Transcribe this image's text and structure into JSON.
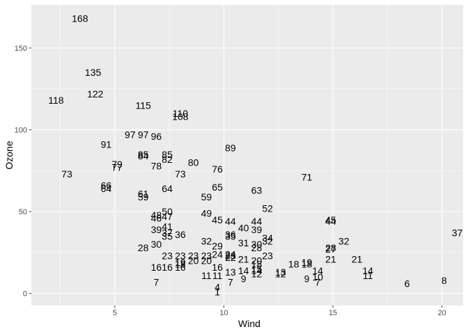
{
  "chart_data": {
    "type": "scatter",
    "title": "",
    "xlabel": "Wind",
    "ylabel": "Ozone",
    "xlim": [
      1.17,
      20.97
    ],
    "ylim": [
      -7.35,
      176.35
    ],
    "x_ticks": [
      5,
      10,
      15,
      20
    ],
    "y_ticks": [
      0,
      50,
      100,
      150
    ],
    "x_minor_ticks": [
      2.5,
      7.5,
      12.5,
      17.5
    ],
    "y_minor_ticks": [
      25,
      75,
      125
    ],
    "grid": true,
    "panel_color": "#ebebeb",
    "grid_color": "#ffffff",
    "point_display": "text labels showing the Ozone value",
    "points": [
      {
        "x": 3.4,
        "y": 168,
        "label": "168"
      },
      {
        "x": 4.0,
        "y": 135,
        "label": "135"
      },
      {
        "x": 2.3,
        "y": 118,
        "label": "118"
      },
      {
        "x": 4.1,
        "y": 122,
        "label": "122"
      },
      {
        "x": 6.3,
        "y": 115,
        "label": "115"
      },
      {
        "x": 8.0,
        "y": 110,
        "label": "110"
      },
      {
        "x": 8.0,
        "y": 108,
        "label": "108"
      },
      {
        "x": 5.7,
        "y": 97,
        "label": "97"
      },
      {
        "x": 6.3,
        "y": 97,
        "label": "97"
      },
      {
        "x": 6.9,
        "y": 96,
        "label": "96"
      },
      {
        "x": 4.6,
        "y": 91,
        "label": "91"
      },
      {
        "x": 10.3,
        "y": 89,
        "label": "89"
      },
      {
        "x": 6.3,
        "y": 85,
        "label": "85"
      },
      {
        "x": 7.4,
        "y": 85,
        "label": "85"
      },
      {
        "x": 6.3,
        "y": 84,
        "label": "84"
      },
      {
        "x": 7.4,
        "y": 82,
        "label": "82"
      },
      {
        "x": 8.6,
        "y": 80,
        "label": "80"
      },
      {
        "x": 5.1,
        "y": 79,
        "label": "79"
      },
      {
        "x": 6.9,
        "y": 78,
        "label": "78"
      },
      {
        "x": 5.1,
        "y": 77,
        "label": "77"
      },
      {
        "x": 9.7,
        "y": 76,
        "label": "76"
      },
      {
        "x": 2.8,
        "y": 73,
        "label": "73"
      },
      {
        "x": 8.0,
        "y": 73,
        "label": "73"
      },
      {
        "x": 13.8,
        "y": 71,
        "label": "71"
      },
      {
        "x": 4.6,
        "y": 66,
        "label": "66"
      },
      {
        "x": 9.7,
        "y": 65,
        "label": "65"
      },
      {
        "x": 4.6,
        "y": 64,
        "label": "64"
      },
      {
        "x": 7.4,
        "y": 64,
        "label": "64"
      },
      {
        "x": 11.5,
        "y": 63,
        "label": "63"
      },
      {
        "x": 6.3,
        "y": 61,
        "label": "61"
      },
      {
        "x": 6.3,
        "y": 59,
        "label": "59"
      },
      {
        "x": 9.2,
        "y": 59,
        "label": "59"
      },
      {
        "x": 12.0,
        "y": 52,
        "label": "52"
      },
      {
        "x": 7.4,
        "y": 50,
        "label": "50"
      },
      {
        "x": 6.9,
        "y": 48,
        "label": "48"
      },
      {
        "x": 9.2,
        "y": 49,
        "label": "49"
      },
      {
        "x": 7.4,
        "y": 47,
        "label": "47"
      },
      {
        "x": 6.9,
        "y": 46,
        "label": "46"
      },
      {
        "x": 9.7,
        "y": 45,
        "label": "45"
      },
      {
        "x": 10.3,
        "y": 44,
        "label": "44"
      },
      {
        "x": 11.5,
        "y": 44,
        "label": "44"
      },
      {
        "x": 14.9,
        "y": 45,
        "label": "45"
      },
      {
        "x": 14.9,
        "y": 44,
        "label": "44"
      },
      {
        "x": 10.9,
        "y": 40,
        "label": "40"
      },
      {
        "x": 11.5,
        "y": 39,
        "label": "39"
      },
      {
        "x": 6.9,
        "y": 39,
        "label": "39"
      },
      {
        "x": 7.4,
        "y": 41,
        "label": "41"
      },
      {
        "x": 7.4,
        "y": 37,
        "label": "37"
      },
      {
        "x": 20.7,
        "y": 37,
        "label": "37"
      },
      {
        "x": 8.0,
        "y": 36,
        "label": "36"
      },
      {
        "x": 10.3,
        "y": 36,
        "label": "36"
      },
      {
        "x": 7.4,
        "y": 35,
        "label": "35"
      },
      {
        "x": 10.3,
        "y": 35,
        "label": "35"
      },
      {
        "x": 12.0,
        "y": 34,
        "label": "34"
      },
      {
        "x": 9.2,
        "y": 32,
        "label": "32"
      },
      {
        "x": 12.0,
        "y": 32,
        "label": "32"
      },
      {
        "x": 15.5,
        "y": 32,
        "label": "32"
      },
      {
        "x": 10.9,
        "y": 31,
        "label": "31"
      },
      {
        "x": 6.9,
        "y": 30,
        "label": "30"
      },
      {
        "x": 11.5,
        "y": 30,
        "label": "30"
      },
      {
        "x": 9.7,
        "y": 29,
        "label": "29"
      },
      {
        "x": 6.3,
        "y": 28,
        "label": "28"
      },
      {
        "x": 11.5,
        "y": 28,
        "label": "28"
      },
      {
        "x": 14.9,
        "y": 28,
        "label": "28"
      },
      {
        "x": 14.9,
        "y": 27,
        "label": "27"
      },
      {
        "x": 9.7,
        "y": 24,
        "label": "24"
      },
      {
        "x": 10.3,
        "y": 24,
        "label": "24"
      },
      {
        "x": 7.4,
        "y": 23,
        "label": "23"
      },
      {
        "x": 8.0,
        "y": 23,
        "label": "23"
      },
      {
        "x": 8.6,
        "y": 23,
        "label": "23"
      },
      {
        "x": 9.2,
        "y": 23,
        "label": "23"
      },
      {
        "x": 10.3,
        "y": 23,
        "label": "23"
      },
      {
        "x": 12.0,
        "y": 23,
        "label": "23"
      },
      {
        "x": 10.3,
        "y": 22,
        "label": "22"
      },
      {
        "x": 10.9,
        "y": 21,
        "label": "21"
      },
      {
        "x": 14.9,
        "y": 21,
        "label": "21"
      },
      {
        "x": 16.1,
        "y": 21,
        "label": "21"
      },
      {
        "x": 8.6,
        "y": 20,
        "label": "20"
      },
      {
        "x": 9.2,
        "y": 20,
        "label": "20"
      },
      {
        "x": 11.5,
        "y": 20,
        "label": "20"
      },
      {
        "x": 8.0,
        "y": 19,
        "label": "19"
      },
      {
        "x": 13.8,
        "y": 19,
        "label": "19"
      },
      {
        "x": 8.0,
        "y": 18,
        "label": "18"
      },
      {
        "x": 11.5,
        "y": 18,
        "label": "18"
      },
      {
        "x": 13.2,
        "y": 18,
        "label": "18"
      },
      {
        "x": 13.8,
        "y": 18,
        "label": "18"
      },
      {
        "x": 6.9,
        "y": 16,
        "label": "16"
      },
      {
        "x": 7.4,
        "y": 16,
        "label": "16"
      },
      {
        "x": 8.0,
        "y": 16,
        "label": "16"
      },
      {
        "x": 9.7,
        "y": 16,
        "label": "16"
      },
      {
        "x": 11.5,
        "y": 15,
        "label": "15"
      },
      {
        "x": 10.9,
        "y": 14,
        "label": "14"
      },
      {
        "x": 11.5,
        "y": 14,
        "label": "14"
      },
      {
        "x": 14.3,
        "y": 14,
        "label": "14"
      },
      {
        "x": 16.6,
        "y": 14,
        "label": "14"
      },
      {
        "x": 10.3,
        "y": 13,
        "label": "13"
      },
      {
        "x": 11.5,
        "y": 12,
        "label": "12"
      },
      {
        "x": 12.6,
        "y": 12,
        "label": "12"
      },
      {
        "x": 12.6,
        "y": 13,
        "label": "13"
      },
      {
        "x": 9.2,
        "y": 11,
        "label": "11"
      },
      {
        "x": 9.7,
        "y": 11,
        "label": "11"
      },
      {
        "x": 16.6,
        "y": 11,
        "label": "11"
      },
      {
        "x": 14.3,
        "y": 10,
        "label": "10"
      },
      {
        "x": 10.9,
        "y": 9,
        "label": "9"
      },
      {
        "x": 13.8,
        "y": 9,
        "label": "9"
      },
      {
        "x": 20.1,
        "y": 8,
        "label": "8"
      },
      {
        "x": 6.9,
        "y": 7,
        "label": "7"
      },
      {
        "x": 10.3,
        "y": 7,
        "label": "7"
      },
      {
        "x": 14.3,
        "y": 7,
        "label": "7"
      },
      {
        "x": 18.4,
        "y": 6,
        "label": "6"
      },
      {
        "x": 9.7,
        "y": 4,
        "label": "4"
      },
      {
        "x": 9.7,
        "y": 1,
        "label": "1"
      }
    ]
  }
}
